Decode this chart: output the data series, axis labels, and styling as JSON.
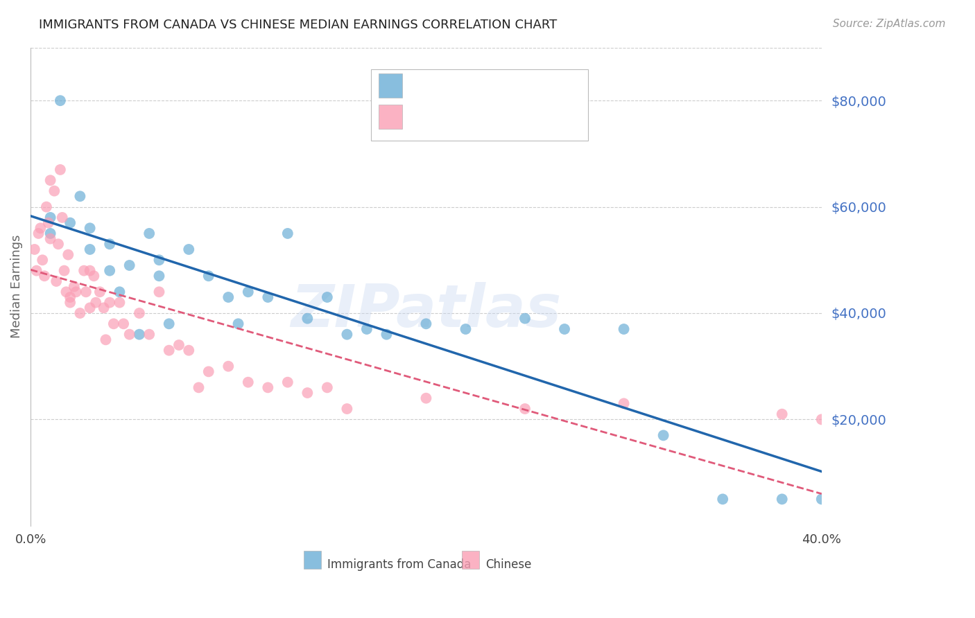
{
  "title": "IMMIGRANTS FROM CANADA VS CHINESE MEDIAN EARNINGS CORRELATION CHART",
  "source": "Source: ZipAtlas.com",
  "ylabel": "Median Earnings",
  "xlim": [
    0.0,
    0.4
  ],
  "ylim": [
    0,
    90000
  ],
  "yticks": [
    20000,
    40000,
    60000,
    80000
  ],
  "ytick_labels": [
    "$20,000",
    "$40,000",
    "$60,000",
    "$80,000"
  ],
  "xticks": [
    0.0,
    0.1,
    0.2,
    0.3,
    0.4
  ],
  "xtick_labels": [
    "0.0%",
    "",
    "",
    "",
    "40.0%"
  ],
  "background_color": "#ffffff",
  "grid_color": "#cccccc",
  "canada_color": "#6baed6",
  "chinese_color": "#fa9fb5",
  "canada_line_color": "#2166ac",
  "chinese_line_color": "#e05a7a",
  "title_color": "#222222",
  "ytick_color": "#4472c4",
  "legend_label_canada": "Immigrants from Canada",
  "legend_label_chinese": "Chinese",
  "watermark": "ZIPatlas",
  "canada_x": [
    0.01,
    0.01,
    0.015,
    0.02,
    0.025,
    0.03,
    0.03,
    0.04,
    0.04,
    0.045,
    0.05,
    0.055,
    0.06,
    0.065,
    0.065,
    0.07,
    0.08,
    0.09,
    0.1,
    0.105,
    0.11,
    0.12,
    0.13,
    0.14,
    0.15,
    0.16,
    0.17,
    0.18,
    0.2,
    0.22,
    0.25,
    0.27,
    0.3,
    0.32,
    0.35,
    0.38,
    0.4
  ],
  "canada_y": [
    58000,
    55000,
    80000,
    57000,
    62000,
    56000,
    52000,
    53000,
    48000,
    44000,
    49000,
    36000,
    55000,
    50000,
    47000,
    38000,
    52000,
    47000,
    43000,
    38000,
    44000,
    43000,
    55000,
    39000,
    43000,
    36000,
    37000,
    36000,
    38000,
    37000,
    39000,
    37000,
    37000,
    17000,
    5000,
    5000,
    5000
  ],
  "chinese_x": [
    0.002,
    0.003,
    0.004,
    0.005,
    0.006,
    0.007,
    0.008,
    0.009,
    0.01,
    0.01,
    0.012,
    0.013,
    0.014,
    0.015,
    0.016,
    0.017,
    0.018,
    0.019,
    0.02,
    0.02,
    0.022,
    0.023,
    0.025,
    0.027,
    0.028,
    0.03,
    0.03,
    0.032,
    0.033,
    0.035,
    0.037,
    0.038,
    0.04,
    0.042,
    0.045,
    0.047,
    0.05,
    0.055,
    0.06,
    0.065,
    0.07,
    0.075,
    0.08,
    0.085,
    0.09,
    0.1,
    0.11,
    0.12,
    0.13,
    0.14,
    0.15,
    0.16,
    0.2,
    0.25,
    0.3,
    0.38,
    0.4
  ],
  "chinese_y": [
    52000,
    48000,
    55000,
    56000,
    50000,
    47000,
    60000,
    57000,
    54000,
    65000,
    63000,
    46000,
    53000,
    67000,
    58000,
    48000,
    44000,
    51000,
    43000,
    42000,
    45000,
    44000,
    40000,
    48000,
    44000,
    48000,
    41000,
    47000,
    42000,
    44000,
    41000,
    35000,
    42000,
    38000,
    42000,
    38000,
    36000,
    40000,
    36000,
    44000,
    33000,
    34000,
    33000,
    26000,
    29000,
    30000,
    27000,
    26000,
    27000,
    25000,
    26000,
    22000,
    24000,
    22000,
    23000,
    21000,
    20000
  ]
}
